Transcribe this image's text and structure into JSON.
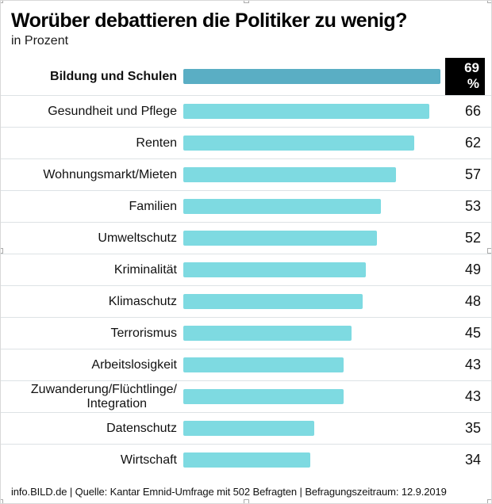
{
  "chart_data": {
    "type": "bar",
    "orientation": "horizontal",
    "title": "Worüber debattieren die Politiker zu wenig?",
    "subtitle": "in Prozent",
    "unit": "%",
    "value_axis_max": 69,
    "categories": [
      "Bildung und Schulen",
      "Gesundheit und Pflege",
      "Renten",
      "Wohnungsmarkt/Mieten",
      "Familien",
      "Umweltschutz",
      "Kriminalität",
      "Klimaschutz",
      "Terrorismus",
      "Arbeitslosigkeit",
      "Zuwanderung/Flüchtlinge/\nIntegration",
      "Datenschutz",
      "Wirtschaft"
    ],
    "values": [
      69,
      66,
      62,
      57,
      53,
      52,
      49,
      48,
      45,
      43,
      43,
      35,
      34
    ],
    "highlight": {
      "index": 0,
      "value_label": "69 %"
    },
    "colors": {
      "bar": "#7EDAE1",
      "highlight_bar": "#5AAEC4",
      "value_box_bg": "#000000",
      "value_box_text": "#FFFFFF"
    },
    "footer": "info.BILD.de | Quelle: Kantar Emnid-Umfrage mit 502 Befragten | Befragungszeitraum: 12.9.2019"
  }
}
